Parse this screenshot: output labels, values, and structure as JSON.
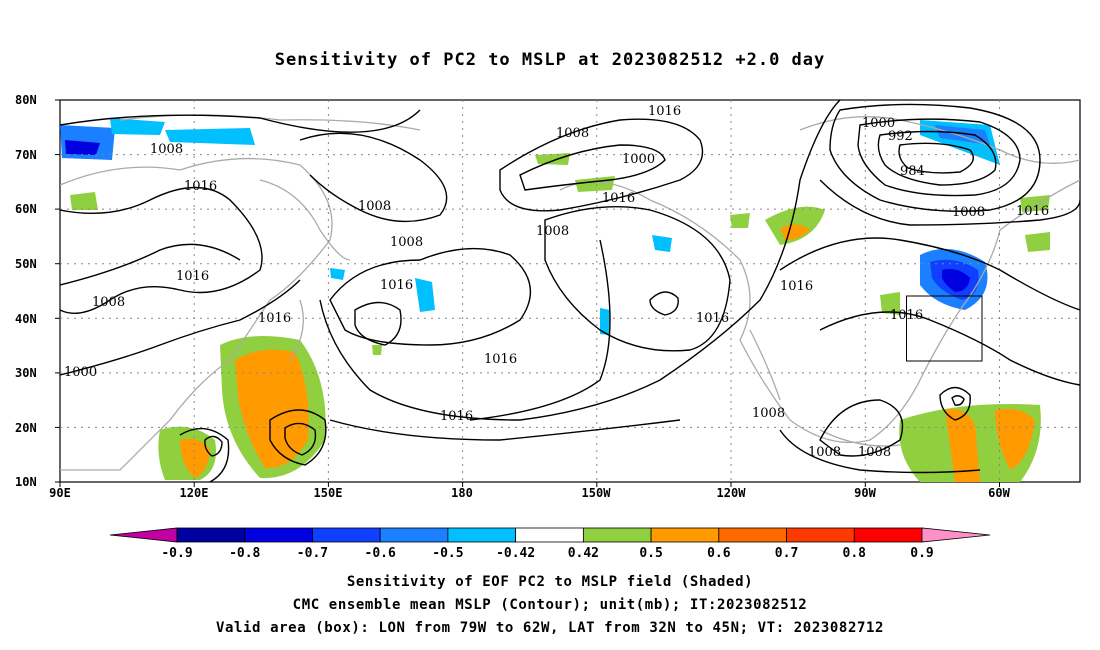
{
  "title": "Sensitivity of PC2 to MSLP at 2023082512 +2.0 day",
  "map": {
    "lat_labels": [
      "80N",
      "70N",
      "60N",
      "50N",
      "40N",
      "30N",
      "20N",
      "10N"
    ],
    "lon_labels": [
      "90E",
      "120E",
      "150E",
      "180",
      "150W",
      "120W",
      "90W",
      "60W"
    ],
    "contour_labels": [
      "1016",
      "1008",
      "1000",
      "1016",
      "1008",
      "1016",
      "1008",
      "1008",
      "1016",
      "1008",
      "1000",
      "1008",
      "1016",
      "1016",
      "1016",
      "1016",
      "1016",
      "1016",
      "1016",
      "1000",
      "992",
      "984",
      "1008",
      "1016",
      "1016",
      "1008",
      "1008",
      "1008",
      "1000"
    ],
    "valid_box": {
      "lon_from": "79W",
      "lon_to": "62W",
      "lat_from": "32N",
      "lat_to": "45N"
    }
  },
  "colorbar": {
    "labels": [
      "-0.9",
      "-0.8",
      "-0.7",
      "-0.6",
      "-0.5",
      "-0.42",
      "0.42",
      "0.5",
      "0.6",
      "0.7",
      "0.8",
      "0.9"
    ],
    "colors": [
      "#0000a0",
      "#0000e0",
      "#1040ff",
      "#1a80ff",
      "#00c0ff",
      "#ffffff",
      "#90d040",
      "#ff9a00",
      "#ff6a00",
      "#ff3a00",
      "#ff0000"
    ],
    "low_extension": "#c000a0",
    "high_extension": "#ff90c8"
  },
  "captions": {
    "line1": "Sensitivity of EOF PC2 to MSLP field (Shaded)",
    "line2": "CMC ensemble mean MSLP (Contour); unit(mb); IT:2023082512",
    "line3": "Valid area (box): LON from 79W to 62W, LAT from 32N to 45N; VT: 2023082712"
  }
}
